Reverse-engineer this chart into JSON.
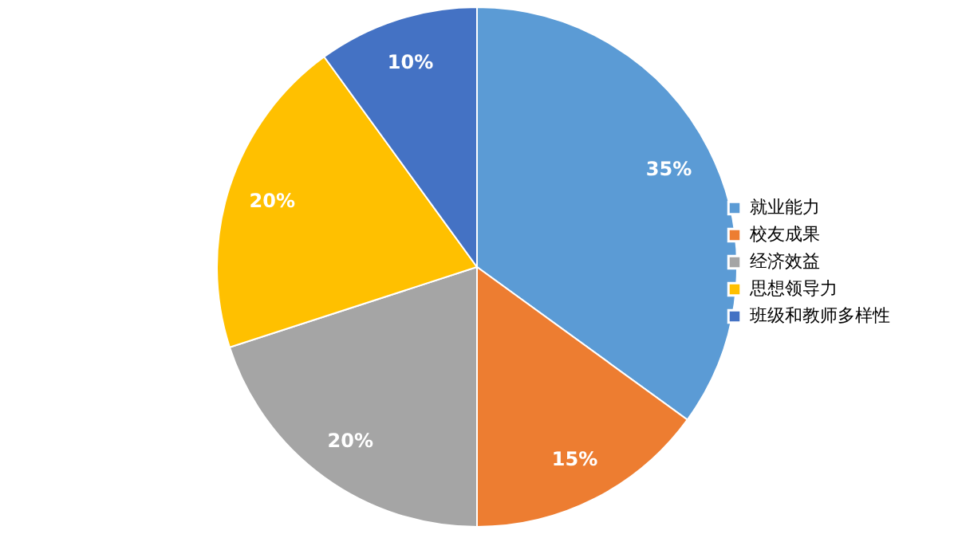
{
  "chart_data": {
    "type": "pie",
    "categories": [
      "就业能力",
      "校友成果",
      "经济效益",
      "思想领导力",
      "班级和教师多样性"
    ],
    "values": [
      35,
      15,
      20,
      20,
      10
    ],
    "colors": [
      "#5b9bd5",
      "#ed7d31",
      "#a5a5a5",
      "#ffc000",
      "#4472c4"
    ],
    "value_labels": [
      "35%",
      "15%",
      "20%",
      "20%",
      "10%"
    ],
    "legend": "right"
  }
}
